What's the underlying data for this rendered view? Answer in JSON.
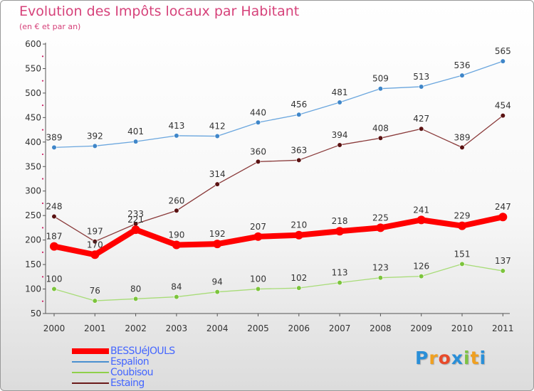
{
  "header": {
    "title": "Evolution des Impôts locaux par Habitant",
    "subtitle": "(en € et par an)"
  },
  "chart_data": {
    "type": "line",
    "title": "Evolution des Impôts locaux par Habitant",
    "subtitle": "(en € et par an)",
    "xlabel": "",
    "ylabel": "",
    "ylim": [
      50,
      600
    ],
    "yticks": [
      50,
      100,
      150,
      200,
      250,
      300,
      350,
      400,
      450,
      500,
      550,
      600
    ],
    "categories": [
      "2000",
      "2001",
      "2002",
      "2003",
      "2004",
      "2005",
      "2006",
      "2007",
      "2008",
      "2009",
      "2010",
      "2011"
    ],
    "grid": false,
    "legend_position": "bottom-left",
    "series": [
      {
        "name": "BESSUéJOULS",
        "color": "#ff0000",
        "values": [
          187,
          170,
          221,
          190,
          192,
          207,
          210,
          218,
          225,
          241,
          229,
          247
        ]
      },
      {
        "name": "Espalion",
        "color": "#4a90d0",
        "values": [
          389,
          392,
          401,
          413,
          412,
          440,
          456,
          481,
          509,
          513,
          536,
          565
        ]
      },
      {
        "name": "Coubisou",
        "color": "#8fd04a",
        "values": [
          100,
          76,
          80,
          84,
          94,
          100,
          102,
          113,
          123,
          126,
          151,
          137
        ]
      },
      {
        "name": "Estaing",
        "color": "#6b1a1a",
        "values": [
          248,
          197,
          233,
          260,
          314,
          360,
          363,
          394,
          408,
          427,
          389,
          454
        ]
      }
    ]
  },
  "logo": {
    "letters": [
      "P",
      "r",
      "o",
      "x",
      "i",
      "t",
      "i"
    ],
    "colors": [
      "#2a8fd8",
      "#f0a020",
      "#e84a2a",
      "#2a8fd8",
      "#7dc242",
      "#f0a020",
      "#2a8fd8"
    ]
  }
}
